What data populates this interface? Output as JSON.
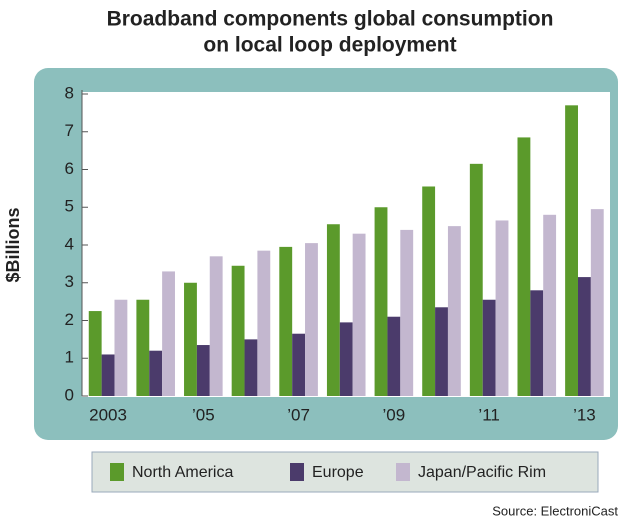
{
  "chart_data": {
    "type": "bar",
    "title": [
      "Broadband components global consumption",
      "on local loop deployment"
    ],
    "y_label": "$Billions",
    "source": "Source: ElectroniCast",
    "categories": [
      "2003",
      null,
      "’05",
      null,
      "’07",
      null,
      "’09",
      null,
      "’11",
      null,
      "’13"
    ],
    "series": [
      {
        "name": "North America",
        "color": "#5b9a2b",
        "values": [
          2.25,
          2.55,
          3.0,
          3.45,
          3.95,
          4.55,
          5.0,
          5.55,
          6.15,
          6.85,
          7.7
        ]
      },
      {
        "name": "Europe",
        "color": "#4b3b6b",
        "values": [
          1.1,
          1.2,
          1.35,
          1.5,
          1.65,
          1.95,
          2.1,
          2.35,
          2.55,
          2.8,
          3.15
        ]
      },
      {
        "name": "Japan/Pacific Rim",
        "color": "#c3b7cf",
        "values": [
          2.55,
          3.3,
          3.7,
          3.85,
          4.05,
          4.3,
          4.4,
          4.5,
          4.65,
          4.8,
          4.95
        ]
      }
    ],
    "ylim": [
      0,
      8
    ],
    "yticks": [
      0,
      1,
      2,
      3,
      4,
      5,
      6,
      7,
      8
    ],
    "grid": false
  }
}
